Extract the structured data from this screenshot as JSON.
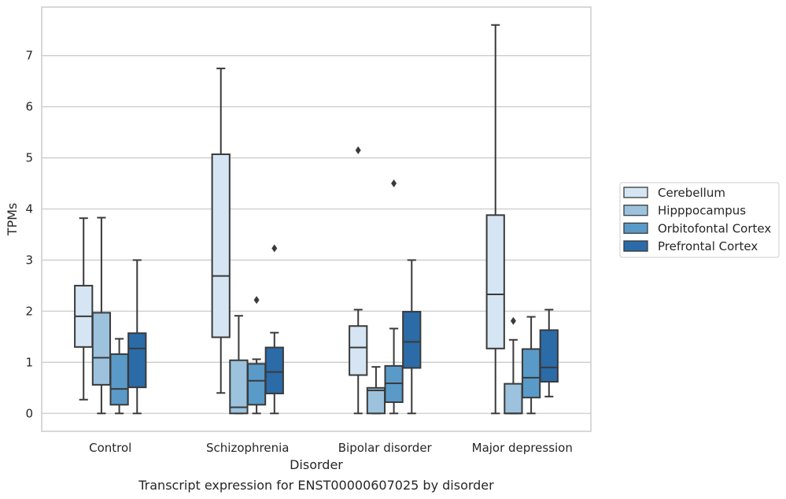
{
  "caption": "Transcript expression for ENST00000607025 by disorder",
  "chart_data": {
    "type": "box",
    "title": "",
    "xlabel": "Disorder",
    "ylabel": "TPMs",
    "ylim": [
      -0.35,
      7.95
    ],
    "yticks": [
      0,
      1,
      2,
      3,
      4,
      5,
      6,
      7
    ],
    "grid": "horizontal",
    "legend_position": "right",
    "categories": [
      "Control",
      "Schizophrenia",
      "Bipolar disorder",
      "Major depression"
    ],
    "series": [
      {
        "name": "Cerebellum",
        "color": "#d6e5f3",
        "boxes": [
          {
            "whislo": 0.27,
            "q1": 1.3,
            "med": 1.9,
            "q3": 2.5,
            "whishi": 3.82,
            "fliers": []
          },
          {
            "whislo": 0.4,
            "q1": 1.49,
            "med": 2.69,
            "q3": 5.07,
            "whishi": 6.75,
            "fliers": []
          },
          {
            "whislo": 0.0,
            "q1": 0.75,
            "med": 1.29,
            "q3": 1.71,
            "whishi": 2.03,
            "fliers": [
              5.15
            ]
          },
          {
            "whislo": 0.0,
            "q1": 1.27,
            "med": 2.33,
            "q3": 3.88,
            "whishi": 7.6,
            "fliers": []
          }
        ]
      },
      {
        "name": "Hipppocampus",
        "color": "#9cc2dd",
        "boxes": [
          {
            "whislo": 0.0,
            "q1": 0.56,
            "med": 1.09,
            "q3": 1.97,
            "whishi": 3.83,
            "fliers": []
          },
          {
            "whislo": 0.0,
            "q1": 0.0,
            "med": 0.12,
            "q3": 1.04,
            "whishi": 1.91,
            "fliers": []
          },
          {
            "whislo": 0.0,
            "q1": 0.0,
            "med": 0.45,
            "q3": 0.5,
            "whishi": 0.91,
            "fliers": []
          },
          {
            "whislo": 0.0,
            "q1": 0.0,
            "med": 0.0,
            "q3": 0.58,
            "whishi": 1.44,
            "fliers": [
              1.81
            ]
          }
        ]
      },
      {
        "name": "Orbitofontal Cortex",
        "color": "#5a9ac8",
        "boxes": [
          {
            "whislo": 0.0,
            "q1": 0.17,
            "med": 0.48,
            "q3": 1.16,
            "whishi": 1.46,
            "fliers": []
          },
          {
            "whislo": 0.0,
            "q1": 0.17,
            "med": 0.64,
            "q3": 0.97,
            "whishi": 1.06,
            "fliers": [
              2.22
            ]
          },
          {
            "whislo": 0.0,
            "q1": 0.22,
            "med": 0.59,
            "q3": 0.93,
            "whishi": 1.66,
            "fliers": [
              4.5
            ]
          },
          {
            "whislo": 0.0,
            "q1": 0.31,
            "med": 0.7,
            "q3": 1.26,
            "whishi": 1.89,
            "fliers": []
          }
        ]
      },
      {
        "name": "Prefrontal Cortex",
        "color": "#2b6ba8",
        "boxes": [
          {
            "whislo": 0.0,
            "q1": 0.51,
            "med": 1.27,
            "q3": 1.57,
            "whishi": 3.0,
            "fliers": []
          },
          {
            "whislo": 0.0,
            "q1": 0.39,
            "med": 0.81,
            "q3": 1.29,
            "whishi": 1.58,
            "fliers": [
              3.23
            ]
          },
          {
            "whislo": 0.0,
            "q1": 0.89,
            "med": 1.4,
            "q3": 1.99,
            "whishi": 3.0,
            "fliers": []
          },
          {
            "whislo": 0.33,
            "q1": 0.62,
            "med": 0.9,
            "q3": 1.63,
            "whishi": 2.03,
            "fliers": []
          }
        ]
      }
    ]
  }
}
